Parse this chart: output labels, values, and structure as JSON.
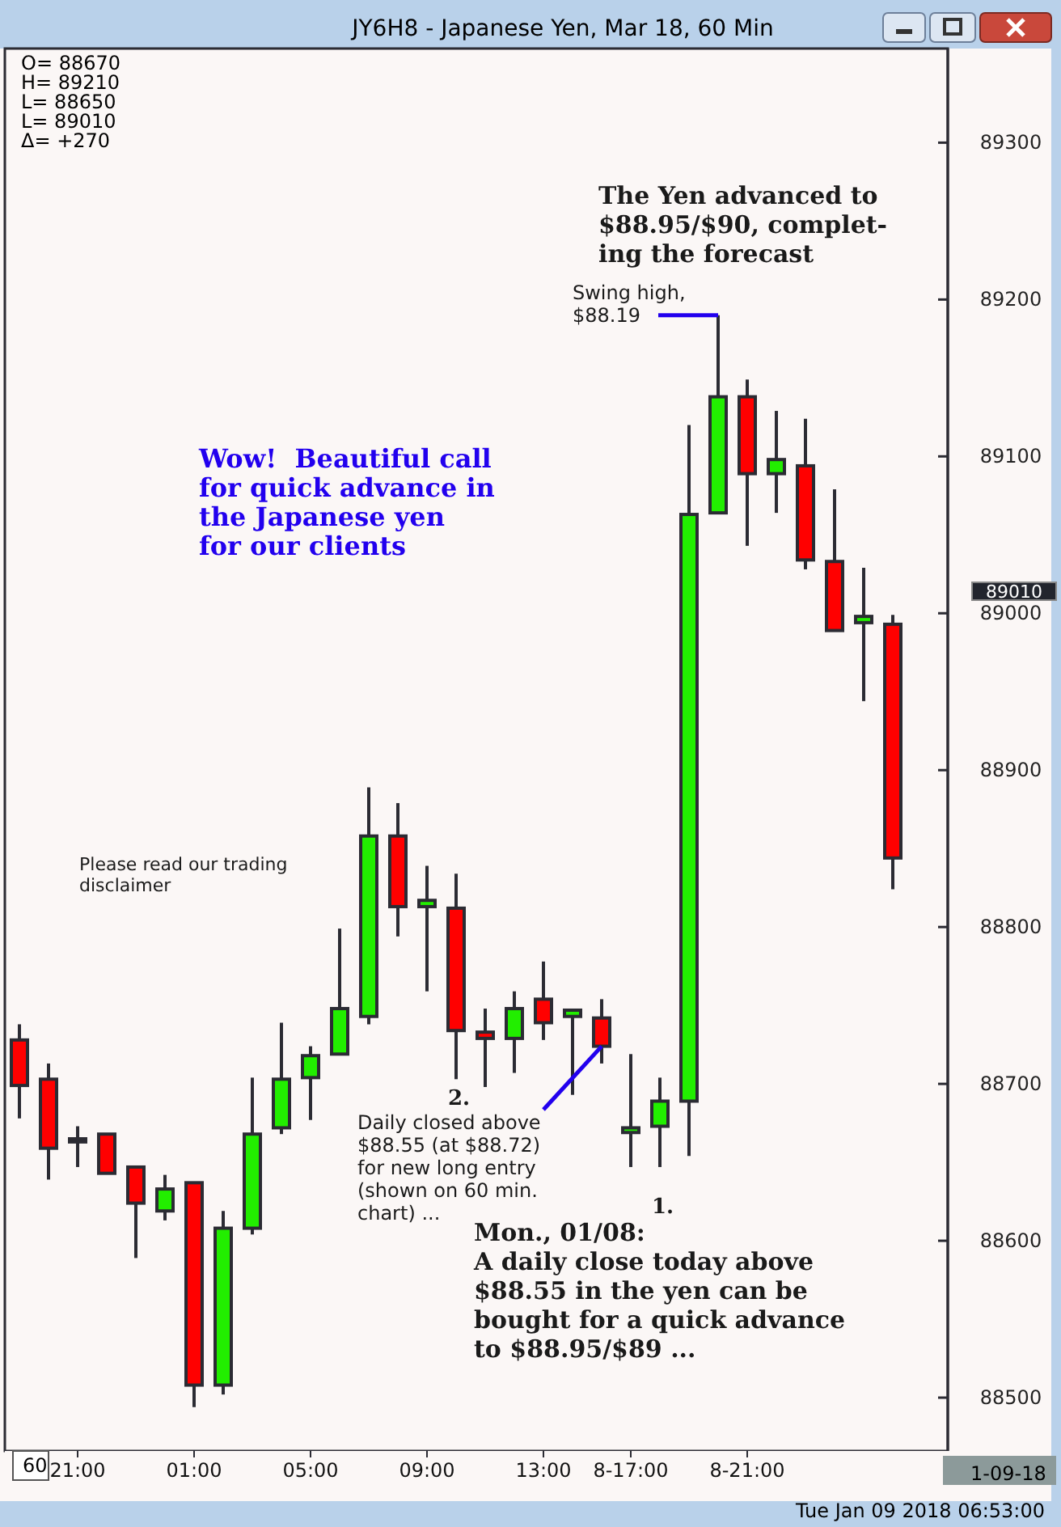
{
  "chart_data": {
    "type": "candlestick",
    "title": "JY6H8 - Japanese Yen, Mar 18, 60 Min",
    "categories": [
      null,
      null,
      "21:00",
      null,
      null,
      null,
      "01:00",
      null,
      null,
      null,
      "05:00",
      null,
      null,
      null,
      "09:00",
      null,
      null,
      null,
      "13:00",
      null,
      null,
      "8-17:00",
      null,
      null,
      null,
      "8-21:00",
      null,
      null,
      null,
      null,
      null
    ],
    "ohlc": [
      [
        88728,
        88738,
        88678,
        88699
      ],
      [
        88703,
        88713,
        88639,
        88659
      ],
      [
        88665,
        88673,
        88647,
        88663
      ],
      [
        88668,
        88668,
        88643,
        88643
      ],
      [
        88647,
        88647,
        88589,
        88624
      ],
      [
        88619,
        88642,
        88613,
        88633
      ],
      [
        88637,
        88637,
        88494,
        88508
      ],
      [
        88508,
        88619,
        88502,
        88608
      ],
      [
        88608,
        88704,
        88604,
        88668
      ],
      [
        88672,
        88739,
        88668,
        88703
      ],
      [
        88704,
        88724,
        88677,
        88718
      ],
      [
        88719,
        88799,
        88719,
        88748
      ],
      [
        88743,
        88889,
        88738,
        88858
      ],
      [
        88858,
        88879,
        88794,
        88813
      ],
      [
        88813,
        88839,
        88759,
        88817
      ],
      [
        88812,
        88834,
        88703,
        88734
      ],
      [
        88733,
        88748,
        88698,
        88729
      ],
      [
        88729,
        88759,
        88707,
        88748
      ],
      [
        88754,
        88778,
        88728,
        88739
      ],
      [
        88743,
        88747,
        88693,
        88747
      ],
      [
        88742,
        88754,
        88713,
        88724
      ],
      [
        88669,
        88719,
        88647,
        88672
      ],
      [
        88673,
        88704,
        88647,
        88689
      ],
      [
        88689,
        89120,
        88654,
        89063
      ],
      [
        89064,
        89190,
        89064,
        89138
      ],
      [
        89138,
        89149,
        89043,
        89089
      ],
      [
        89089,
        89129,
        89064,
        89098
      ],
      [
        89094,
        89124,
        89028,
        89034
      ],
      [
        89033,
        89079,
        88989,
        88989
      ],
      [
        88994,
        89029,
        88944,
        88998
      ],
      [
        88993,
        88999,
        88824,
        88844
      ]
    ],
    "colors": [
      "#ff0000",
      "#ff0000",
      "#2b2b33",
      "#ff0000",
      "#ff0000",
      "#22ee00",
      "#ff0000",
      "#22ee00",
      "#22ee00",
      "#22ee00",
      "#22ee00",
      "#22ee00",
      "#22ee00",
      "#ff0000",
      "#22ee00",
      "#ff0000",
      "#ff0000",
      "#22ee00",
      "#ff0000",
      "#22ee00",
      "#ff0000",
      "#22ee00",
      "#22ee00",
      "#22ee00",
      "#22ee00",
      "#ff0000",
      "#22ee00",
      "#ff0000",
      "#ff0000",
      "#22ee00",
      "#ff0000"
    ],
    "ylim": [
      88466,
      89360
    ],
    "yticks": [
      88500,
      88600,
      88700,
      88800,
      88900,
      89000,
      89100,
      89200,
      89300
    ],
    "grid": false,
    "annotations": [
      "89010",
      "O= 88670",
      "H= 89210",
      "L= 88650",
      "L= 89010",
      "Δ= +270",
      "The Yen advanced to\n$88.95/$90, complet-\ning the forecast",
      "Swing high,\n$88.19",
      "Wow!  Beautiful call\nfor quick advance in\nthe Japanese yen\nfor our clients",
      "Please read our trading\ndisclaimer",
      "2.",
      "Daily closed above\n$88.55 (at $88.72)\nfor new long entry\n(shown on 60 min.\nchart) ...",
      "1.",
      "Mon., 01/08:\nA daily close today above\n$88.55 in the yen can be\nbought for a quick advance\nto $88.95/$89 ...",
      "60",
      "1-09-18",
      "Tue Jan 09 2018 06:53:00"
    ]
  }
}
